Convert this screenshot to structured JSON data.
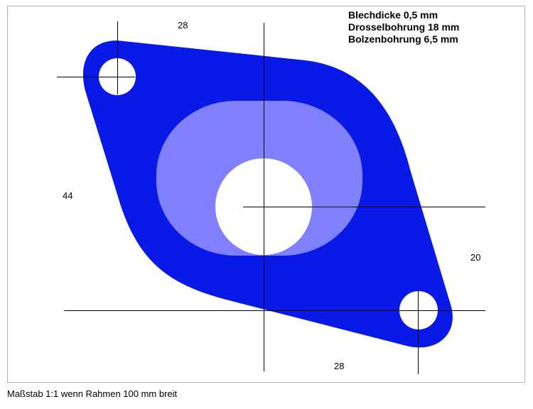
{
  "specs": {
    "thickness": "Blechdicke 0,5 mm",
    "throttle_bore": "Drosselbohrung 18 mm",
    "bolt_bore": "Bolzenbohrung 6,5 mm"
  },
  "dimensions": {
    "top_spacing": "28",
    "left_height": "44",
    "right_offset": "20",
    "bottom_spacing": "28"
  },
  "scale_note": "Maßstab 1:1 wenn Rahmen 100 mm breit",
  "colors": {
    "gasket": "#0a1ae6",
    "throttle_recess": "#8080ff",
    "hole": "#ffffff",
    "line": "#000000"
  }
}
